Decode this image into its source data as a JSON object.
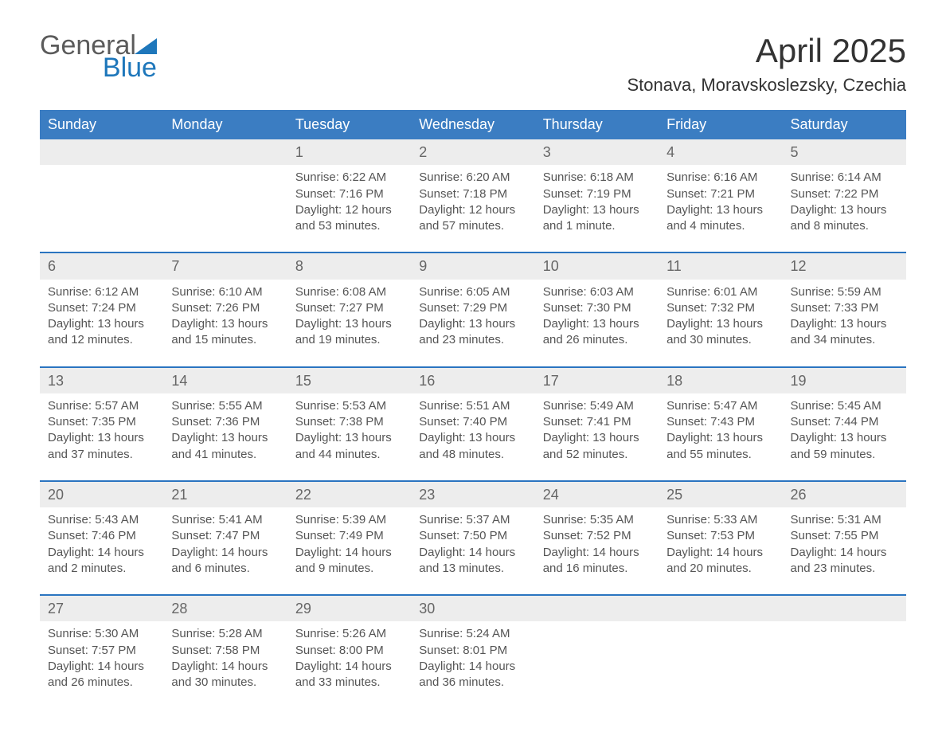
{
  "logo": {
    "word1": "General",
    "word2": "Blue"
  },
  "title": "April 2025",
  "location": "Stonava, Moravskoslezsky, Czechia",
  "weekdays": [
    "Sunday",
    "Monday",
    "Tuesday",
    "Wednesday",
    "Thursday",
    "Friday",
    "Saturday"
  ],
  "colors": {
    "header_blue": "#3b7dc2",
    "accent_blue": "#2a74c0",
    "light_gray": "#ededed",
    "text_gray": "#555555",
    "logo_gray": "#5b5b5b",
    "logo_blue": "#1e77bb",
    "background": "#ffffff"
  },
  "typography": {
    "title_fontsize_pt": 32,
    "location_fontsize_pt": 17,
    "weekday_fontsize_pt": 14,
    "daynum_fontsize_pt": 14,
    "body_fontsize_pt": 11,
    "font_family": "Arial"
  },
  "layout": {
    "columns": 7,
    "rows": 5,
    "first_weekday_index": 2,
    "days_in_month": 30
  },
  "labels": {
    "sunrise": "Sunrise:",
    "sunset": "Sunset:",
    "daylight": "Daylight:"
  },
  "days": [
    {
      "n": 1,
      "sunrise": "6:22 AM",
      "sunset": "7:16 PM",
      "daylight": "12 hours and 53 minutes."
    },
    {
      "n": 2,
      "sunrise": "6:20 AM",
      "sunset": "7:18 PM",
      "daylight": "12 hours and 57 minutes."
    },
    {
      "n": 3,
      "sunrise": "6:18 AM",
      "sunset": "7:19 PM",
      "daylight": "13 hours and 1 minute."
    },
    {
      "n": 4,
      "sunrise": "6:16 AM",
      "sunset": "7:21 PM",
      "daylight": "13 hours and 4 minutes."
    },
    {
      "n": 5,
      "sunrise": "6:14 AM",
      "sunset": "7:22 PM",
      "daylight": "13 hours and 8 minutes."
    },
    {
      "n": 6,
      "sunrise": "6:12 AM",
      "sunset": "7:24 PM",
      "daylight": "13 hours and 12 minutes."
    },
    {
      "n": 7,
      "sunrise": "6:10 AM",
      "sunset": "7:26 PM",
      "daylight": "13 hours and 15 minutes."
    },
    {
      "n": 8,
      "sunrise": "6:08 AM",
      "sunset": "7:27 PM",
      "daylight": "13 hours and 19 minutes."
    },
    {
      "n": 9,
      "sunrise": "6:05 AM",
      "sunset": "7:29 PM",
      "daylight": "13 hours and 23 minutes."
    },
    {
      "n": 10,
      "sunrise": "6:03 AM",
      "sunset": "7:30 PM",
      "daylight": "13 hours and 26 minutes."
    },
    {
      "n": 11,
      "sunrise": "6:01 AM",
      "sunset": "7:32 PM",
      "daylight": "13 hours and 30 minutes."
    },
    {
      "n": 12,
      "sunrise": "5:59 AM",
      "sunset": "7:33 PM",
      "daylight": "13 hours and 34 minutes."
    },
    {
      "n": 13,
      "sunrise": "5:57 AM",
      "sunset": "7:35 PM",
      "daylight": "13 hours and 37 minutes."
    },
    {
      "n": 14,
      "sunrise": "5:55 AM",
      "sunset": "7:36 PM",
      "daylight": "13 hours and 41 minutes."
    },
    {
      "n": 15,
      "sunrise": "5:53 AM",
      "sunset": "7:38 PM",
      "daylight": "13 hours and 44 minutes."
    },
    {
      "n": 16,
      "sunrise": "5:51 AM",
      "sunset": "7:40 PM",
      "daylight": "13 hours and 48 minutes."
    },
    {
      "n": 17,
      "sunrise": "5:49 AM",
      "sunset": "7:41 PM",
      "daylight": "13 hours and 52 minutes."
    },
    {
      "n": 18,
      "sunrise": "5:47 AM",
      "sunset": "7:43 PM",
      "daylight": "13 hours and 55 minutes."
    },
    {
      "n": 19,
      "sunrise": "5:45 AM",
      "sunset": "7:44 PM",
      "daylight": "13 hours and 59 minutes."
    },
    {
      "n": 20,
      "sunrise": "5:43 AM",
      "sunset": "7:46 PM",
      "daylight": "14 hours and 2 minutes."
    },
    {
      "n": 21,
      "sunrise": "5:41 AM",
      "sunset": "7:47 PM",
      "daylight": "14 hours and 6 minutes."
    },
    {
      "n": 22,
      "sunrise": "5:39 AM",
      "sunset": "7:49 PM",
      "daylight": "14 hours and 9 minutes."
    },
    {
      "n": 23,
      "sunrise": "5:37 AM",
      "sunset": "7:50 PM",
      "daylight": "14 hours and 13 minutes."
    },
    {
      "n": 24,
      "sunrise": "5:35 AM",
      "sunset": "7:52 PM",
      "daylight": "14 hours and 16 minutes."
    },
    {
      "n": 25,
      "sunrise": "5:33 AM",
      "sunset": "7:53 PM",
      "daylight": "14 hours and 20 minutes."
    },
    {
      "n": 26,
      "sunrise": "5:31 AM",
      "sunset": "7:55 PM",
      "daylight": "14 hours and 23 minutes."
    },
    {
      "n": 27,
      "sunrise": "5:30 AM",
      "sunset": "7:57 PM",
      "daylight": "14 hours and 26 minutes."
    },
    {
      "n": 28,
      "sunrise": "5:28 AM",
      "sunset": "7:58 PM",
      "daylight": "14 hours and 30 minutes."
    },
    {
      "n": 29,
      "sunrise": "5:26 AM",
      "sunset": "8:00 PM",
      "daylight": "14 hours and 33 minutes."
    },
    {
      "n": 30,
      "sunrise": "5:24 AM",
      "sunset": "8:01 PM",
      "daylight": "14 hours and 36 minutes."
    }
  ]
}
